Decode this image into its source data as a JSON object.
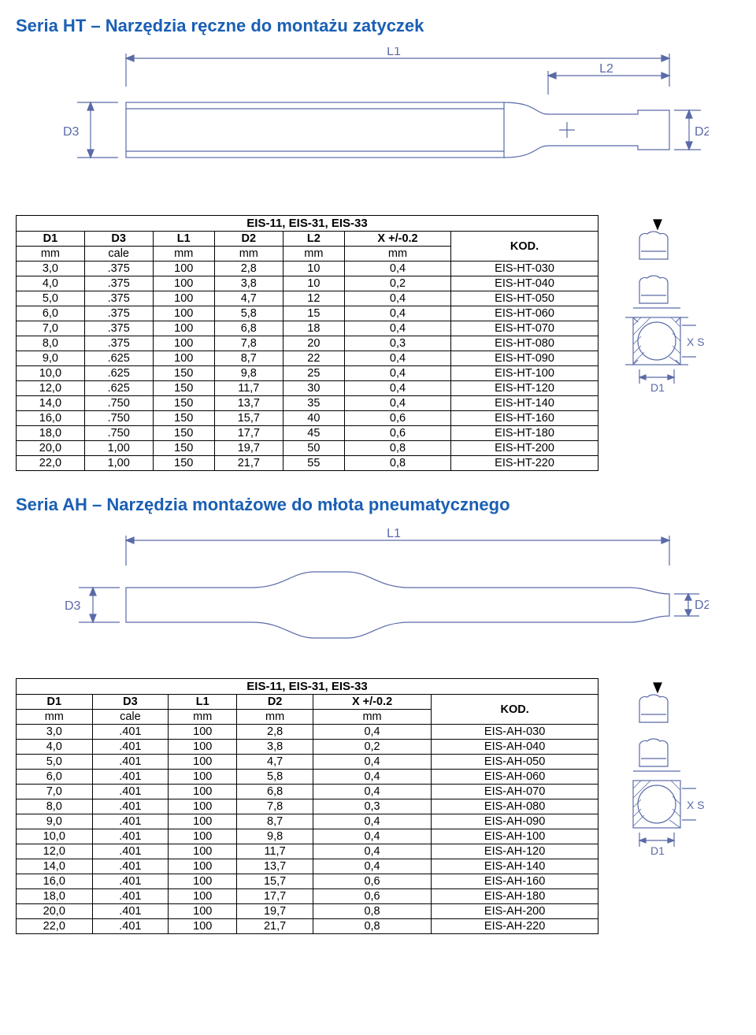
{
  "colors": {
    "title": "#1a5fb4",
    "line": "#5a6aa8",
    "border": "#000000"
  },
  "sectionHT": {
    "title": "Seria HT – Narzędzia ręczne do montażu zatyczek",
    "diagram": {
      "labels": {
        "L1": "L1",
        "L2": "L2",
        "D2": "D2",
        "D3": "D3"
      }
    },
    "table": {
      "caption": "EIS-11, EIS-31, EIS-33",
      "columns": [
        {
          "top": "D1",
          "sub": "mm"
        },
        {
          "top": "D3",
          "sub": "cale"
        },
        {
          "top": "L1",
          "sub": "mm"
        },
        {
          "top": "D2",
          "sub": "mm"
        },
        {
          "top": "L2",
          "sub": "mm"
        },
        {
          "top": "X +/-0.2",
          "sub": "mm"
        },
        {
          "top": "KOD.",
          "sub": ""
        }
      ],
      "rows": [
        [
          "3,0",
          ".375",
          "100",
          "2,8",
          "10",
          "0,4",
          "EIS-HT-030"
        ],
        [
          "4,0",
          ".375",
          "100",
          "3,8",
          "10",
          "0,2",
          "EIS-HT-040"
        ],
        [
          "5,0",
          ".375",
          "100",
          "4,7",
          "12",
          "0,4",
          "EIS-HT-050"
        ],
        [
          "6,0",
          ".375",
          "100",
          "5,8",
          "15",
          "0,4",
          "EIS-HT-060"
        ],
        [
          "7,0",
          ".375",
          "100",
          "6,8",
          "18",
          "0,4",
          "EIS-HT-070"
        ],
        [
          "8,0",
          ".375",
          "100",
          "7,8",
          "20",
          "0,3",
          "EIS-HT-080"
        ],
        [
          "9,0",
          ".625",
          "100",
          "8,7",
          "22",
          "0,4",
          "EIS-HT-090"
        ],
        [
          "10,0",
          ".625",
          "150",
          "9,8",
          "25",
          "0,4",
          "EIS-HT-100"
        ],
        [
          "12,0",
          ".625",
          "150",
          "11,7",
          "30",
          "0,4",
          "EIS-HT-120"
        ],
        [
          "14,0",
          ".750",
          "150",
          "13,7",
          "35",
          "0,4",
          "EIS-HT-140"
        ],
        [
          "16,0",
          ".750",
          "150",
          "15,7",
          "40",
          "0,6",
          "EIS-HT-160"
        ],
        [
          "18,0",
          ".750",
          "150",
          "17,7",
          "45",
          "0,6",
          "EIS-HT-180"
        ],
        [
          "20,0",
          "1,00",
          "150",
          "19,7",
          "50",
          "0,8",
          "EIS-HT-200"
        ],
        [
          "22,0",
          "1,00",
          "150",
          "21,7",
          "55",
          "0,8",
          "EIS-HT-220"
        ]
      ]
    },
    "sideLabels": {
      "XS": "X  S",
      "D1": "D1"
    }
  },
  "sectionAH": {
    "title": "Seria AH – Narzędzia montażowe do młota pneumatycznego",
    "diagram": {
      "labels": {
        "L1": "L1",
        "D2": "D2",
        "D3": "D3"
      }
    },
    "table": {
      "caption": "EIS-11, EIS-31, EIS-33",
      "columns": [
        {
          "top": "D1",
          "sub": "mm"
        },
        {
          "top": "D3",
          "sub": "cale"
        },
        {
          "top": "L1",
          "sub": "mm"
        },
        {
          "top": "D2",
          "sub": "mm"
        },
        {
          "top": "X +/-0.2",
          "sub": "mm"
        },
        {
          "top": "KOD.",
          "sub": ""
        }
      ],
      "rows": [
        [
          "3,0",
          ".401",
          "100",
          "2,8",
          "0,4",
          "EIS-AH-030"
        ],
        [
          "4,0",
          ".401",
          "100",
          "3,8",
          "0,2",
          "EIS-AH-040"
        ],
        [
          "5,0",
          ".401",
          "100",
          "4,7",
          "0,4",
          "EIS-AH-050"
        ],
        [
          "6,0",
          ".401",
          "100",
          "5,8",
          "0,4",
          "EIS-AH-060"
        ],
        [
          "7,0",
          ".401",
          "100",
          "6,8",
          "0,4",
          "EIS-AH-070"
        ],
        [
          "8,0",
          ".401",
          "100",
          "7,8",
          "0,3",
          "EIS-AH-080"
        ],
        [
          "9,0",
          ".401",
          "100",
          "8,7",
          "0,4",
          "EIS-AH-090"
        ],
        [
          "10,0",
          ".401",
          "100",
          "9,8",
          "0,4",
          "EIS-AH-100"
        ],
        [
          "12,0",
          ".401",
          "100",
          "11,7",
          "0,4",
          "EIS-AH-120"
        ],
        [
          "14,0",
          ".401",
          "100",
          "13,7",
          "0,4",
          "EIS-AH-140"
        ],
        [
          "16,0",
          ".401",
          "100",
          "15,7",
          "0,6",
          "EIS-AH-160"
        ],
        [
          "18,0",
          ".401",
          "100",
          "17,7",
          "0,6",
          "EIS-AH-180"
        ],
        [
          "20,0",
          ".401",
          "100",
          "19,7",
          "0,8",
          "EIS-AH-200"
        ],
        [
          "22,0",
          ".401",
          "100",
          "21,7",
          "0,8",
          "EIS-AH-220"
        ]
      ]
    },
    "sideLabels": {
      "XS": "X  S",
      "D1": "D1"
    }
  }
}
